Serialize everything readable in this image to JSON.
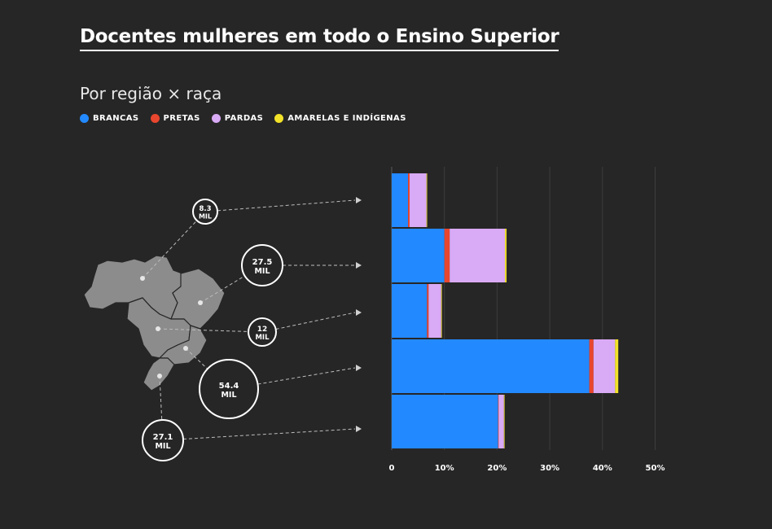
{
  "header": {
    "title": "Docentes mulheres em todo o Ensino Superior",
    "subtitle": "Por região × raça"
  },
  "colors": {
    "background": "#262626",
    "brancas": "#2389ff",
    "pretas": "#e8462e",
    "pardas": "#d9aaf5",
    "amarelas": "#f2e229",
    "map": "#8c8c8c"
  },
  "legend": [
    {
      "label": "BRANCAS",
      "color": "#2389ff"
    },
    {
      "label": "PRETAS",
      "color": "#e8462e"
    },
    {
      "label": "PARDAS",
      "color": "#d9aaf5"
    },
    {
      "label": "AMARELAS E INDÍGENAS",
      "color": "#f2e229"
    }
  ],
  "chart_data": {
    "type": "bar",
    "orientation": "horizontal",
    "stacked": true,
    "title": "Docentes mulheres em todo o Ensino Superior",
    "subtitle": "Por região × raça",
    "xlim": [
      0,
      50
    ],
    "xticks": [
      "0",
      "10%",
      "20%",
      "30%",
      "40%",
      "50%"
    ],
    "xtick_values": [
      0,
      10,
      20,
      30,
      40,
      50
    ],
    "grid": true,
    "legend_position": "top-left",
    "categories": [
      "8.3 MIL",
      "27.5 MIL",
      "12 MIL",
      "54.4 MIL",
      "27.1 MIL"
    ],
    "bubbles": [
      {
        "value": "8.3",
        "unit": "MIL"
      },
      {
        "value": "27.5",
        "unit": "MIL"
      },
      {
        "value": "12",
        "unit": "MIL"
      },
      {
        "value": "54.4",
        "unit": "MIL"
      },
      {
        "value": "27.1",
        "unit": "MIL"
      }
    ],
    "series": [
      {
        "name": "BRANCAS",
        "color": "#2389ff",
        "values": [
          3.1,
          10.0,
          6.7,
          37.5,
          20.2
        ]
      },
      {
        "name": "PRETAS",
        "color": "#e8462e",
        "values": [
          0.3,
          1.0,
          0.3,
          0.8,
          0.1
        ]
      },
      {
        "name": "PARDAS",
        "color": "#d9aaf5",
        "values": [
          3.2,
          10.5,
          2.4,
          4.1,
          1.0
        ]
      },
      {
        "name": "AMARELAS E INDÍGENAS",
        "color": "#f2e229",
        "values": [
          0.1,
          0.3,
          0.1,
          0.6,
          0.1
        ]
      }
    ]
  }
}
